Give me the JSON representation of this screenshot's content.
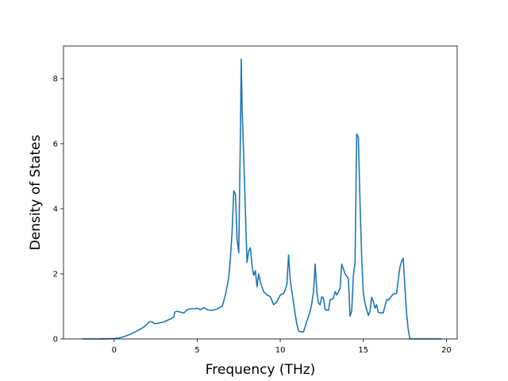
{
  "chart_data": {
    "type": "line",
    "title": "",
    "xlabel": "Frequency (THz)",
    "ylabel": "Density of States",
    "xlim": [
      -3.05,
      20.65
    ],
    "ylim": [
      0,
      9.0
    ],
    "grid": false,
    "line_color": "#1f77b4",
    "xticks": [
      {
        "value": 0,
        "label": "0"
      },
      {
        "value": 5,
        "label": "5"
      },
      {
        "value": 10,
        "label": "10"
      },
      {
        "value": 15,
        "label": "15"
      },
      {
        "value": 20,
        "label": "20"
      }
    ],
    "yticks": [
      {
        "value": 0,
        "label": "0"
      },
      {
        "value": 2,
        "label": "2"
      },
      {
        "value": 4,
        "label": "4"
      },
      {
        "value": 6,
        "label": "6"
      },
      {
        "value": 8,
        "label": "8"
      }
    ],
    "series": [
      {
        "name": "",
        "x": [
          -1.9,
          -1.0,
          0.0,
          0.3,
          0.6,
          0.9,
          1.2,
          1.5,
          1.8,
          2.0,
          2.1,
          2.2,
          2.3,
          2.4,
          2.5,
          2.6,
          2.8,
          3.0,
          3.2,
          3.4,
          3.6,
          3.65,
          3.8,
          4.0,
          4.2,
          4.4,
          4.6,
          4.8,
          5.0,
          5.2,
          5.4,
          5.6,
          5.8,
          6.0,
          6.2,
          6.3,
          6.5,
          6.7,
          6.9,
          7.0,
          7.1,
          7.2,
          7.3,
          7.4,
          7.5,
          7.6,
          7.65,
          7.7,
          7.8,
          7.95,
          8.0,
          8.1,
          8.2,
          8.3,
          8.4,
          8.5,
          8.6,
          8.7,
          8.8,
          9.0,
          9.2,
          9.4,
          9.6,
          9.8,
          10.0,
          10.2,
          10.3,
          10.4,
          10.5,
          10.6,
          10.8,
          10.9,
          11.0,
          11.1,
          11.2,
          11.4,
          11.6,
          11.8,
          11.9,
          12.0,
          12.1,
          12.2,
          12.3,
          12.4,
          12.5,
          12.6,
          12.7,
          12.9,
          13.0,
          13.2,
          13.3,
          13.4,
          13.6,
          13.7,
          13.9,
          14.1,
          14.2,
          14.3,
          14.4,
          14.5,
          14.6,
          14.7,
          14.8,
          14.9,
          15.0,
          15.1,
          15.2,
          15.3,
          15.4,
          15.5,
          15.6,
          15.7,
          15.8,
          15.9,
          16.0,
          16.2,
          16.4,
          16.5,
          16.6,
          16.8,
          17.0,
          17.2,
          17.3,
          17.4,
          17.5,
          17.6,
          17.7,
          17.8,
          17.9,
          18.0,
          18.2,
          19.7
        ],
        "y": [
          0.0,
          0.0,
          0.01,
          0.03,
          0.07,
          0.13,
          0.2,
          0.28,
          0.37,
          0.46,
          0.52,
          0.53,
          0.52,
          0.48,
          0.47,
          0.48,
          0.5,
          0.52,
          0.57,
          0.62,
          0.68,
          0.83,
          0.85,
          0.82,
          0.8,
          0.9,
          0.93,
          0.93,
          0.94,
          0.9,
          0.96,
          0.9,
          0.88,
          0.89,
          0.92,
          0.95,
          1.0,
          1.35,
          1.9,
          2.5,
          3.3,
          4.55,
          4.45,
          3.05,
          2.65,
          6.3,
          8.6,
          7.1,
          5.6,
          3.1,
          2.35,
          2.7,
          2.8,
          2.25,
          1.95,
          2.1,
          1.6,
          2.0,
          1.75,
          1.45,
          1.35,
          1.3,
          1.05,
          1.15,
          1.35,
          1.4,
          1.5,
          1.7,
          2.58,
          1.8,
          1.1,
          0.75,
          0.45,
          0.25,
          0.22,
          0.22,
          0.55,
          0.85,
          1.1,
          1.45,
          2.3,
          1.45,
          1.1,
          1.05,
          1.3,
          1.25,
          0.9,
          0.88,
          1.2,
          1.25,
          1.45,
          1.35,
          1.55,
          2.3,
          2.0,
          1.85,
          0.7,
          0.85,
          1.95,
          2.35,
          6.3,
          6.2,
          4.2,
          2.5,
          1.4,
          1.1,
          0.9,
          0.72,
          0.85,
          1.28,
          1.15,
          0.95,
          1.05,
          0.82,
          0.8,
          0.8,
          1.2,
          1.2,
          1.25,
          1.38,
          1.4,
          2.2,
          2.38,
          2.48,
          1.6,
          0.8,
          0.3,
          0.0,
          0.0,
          0.0,
          0.0,
          0.0
        ]
      }
    ]
  }
}
